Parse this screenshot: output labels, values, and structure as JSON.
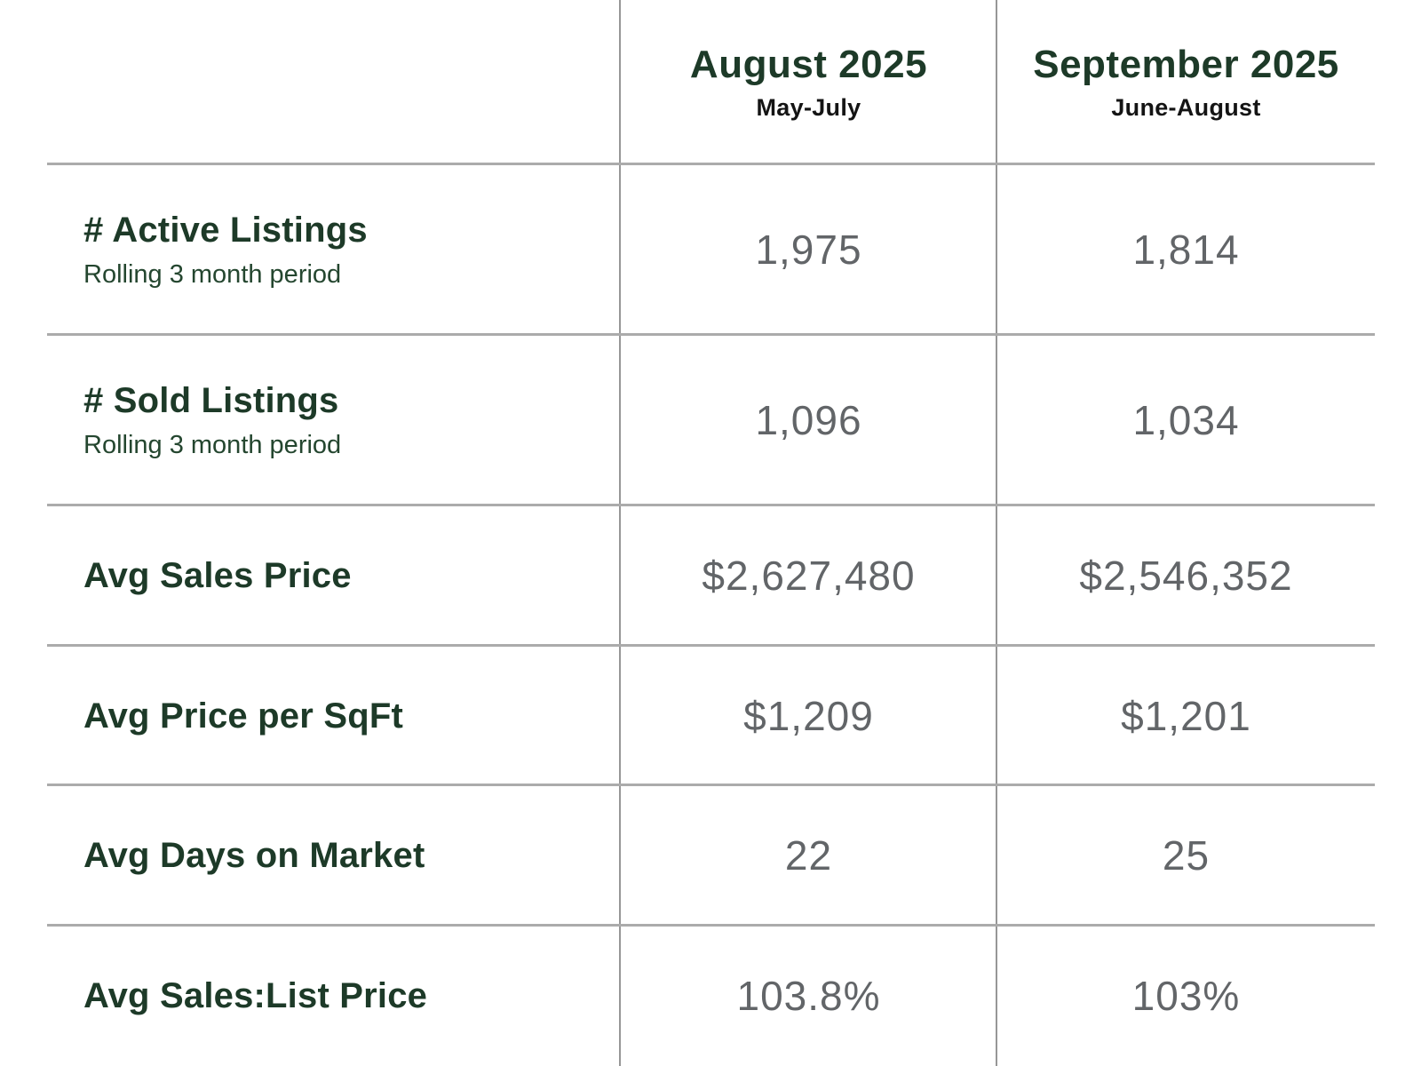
{
  "table": {
    "columns": [
      {
        "month": "August 2025",
        "period": "May-July"
      },
      {
        "month": "September 2025",
        "period": "June-August"
      }
    ],
    "rows": [
      {
        "label": "# Active Listings",
        "sublabel": "Rolling 3 month period",
        "values": [
          "1,975",
          "1,814"
        ]
      },
      {
        "label": "# Sold Listings",
        "sublabel": "Rolling 3 month period",
        "values": [
          "1,096",
          "1,034"
        ]
      },
      {
        "label": "Avg Sales Price",
        "sublabel": "",
        "values": [
          "$2,627,480",
          "$2,546,352"
        ]
      },
      {
        "label": "Avg Price per SqFt",
        "sublabel": "",
        "values": [
          "$1,209",
          "$1,201"
        ]
      },
      {
        "label": "Avg Days on Market",
        "sublabel": "",
        "values": [
          "22",
          "25"
        ]
      },
      {
        "label": "Avg Sales:List Price",
        "sublabel": "",
        "values": [
          "103.8%",
          "103%"
        ]
      }
    ],
    "colors": {
      "heading_green": "#1d3a28",
      "period_black": "#141414",
      "value_gray": "#626568",
      "hline_gray": "#ababab",
      "vline_gray": "#979797"
    }
  },
  "chart_data": {
    "type": "table",
    "columns": [
      "Metric",
      "August 2025 (May-July)",
      "September 2025 (June-August)"
    ],
    "rows": [
      [
        "# Active Listings (Rolling 3 month period)",
        1975,
        1814
      ],
      [
        "# Sold Listings (Rolling 3 month period)",
        1096,
        1034
      ],
      [
        "Avg Sales Price ($)",
        2627480,
        2546352
      ],
      [
        "Avg Price per SqFt ($)",
        1209,
        1201
      ],
      [
        "Avg Days on Market",
        22,
        25
      ],
      [
        "Avg Sales:List Price (%)",
        103.8,
        103.0
      ]
    ],
    "title": "",
    "layout": "comparison table, rolling 3-month real estate stats, grid on"
  }
}
